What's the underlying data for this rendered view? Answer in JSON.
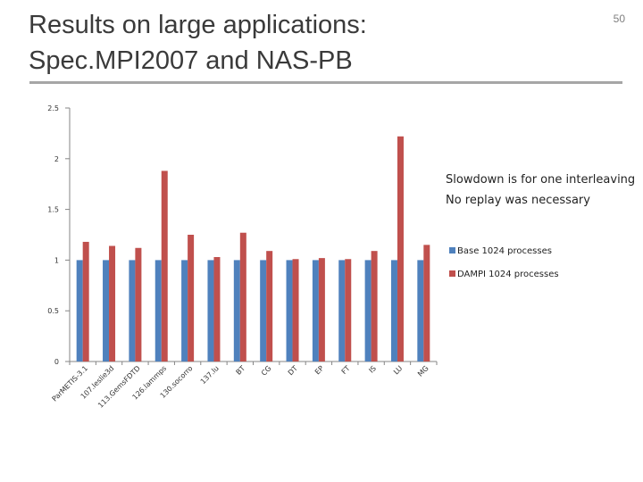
{
  "slide": {
    "title_line1": "Results on large applications:",
    "title_line2": "Spec.MPI2007 and NAS-PB",
    "page_number": "50"
  },
  "note": {
    "line1": "Slowdown is for one interleaving",
    "line2": "No replay was necessary"
  },
  "chart_data": {
    "type": "bar",
    "title": "",
    "xlabel": "",
    "ylabel": "",
    "ylim": [
      0,
      2.5
    ],
    "yticks": [
      "0",
      "0.5",
      "1",
      "1.5",
      "2",
      "2.5"
    ],
    "grid": false,
    "legend": "right",
    "categories": [
      "ParMETIS-3.1",
      "107.leslie3d",
      "113.GemsFDTD",
      "126.lammps",
      "130.socorro",
      "137.lu",
      "BT",
      "CG",
      "DT",
      "EP",
      "FT",
      "IS",
      "LU",
      "MG"
    ],
    "series": [
      {
        "name": "Base 1024 processes",
        "color": "#4f81bd",
        "values": [
          1,
          1,
          1,
          1,
          1,
          1,
          1,
          1,
          1,
          1,
          1,
          1,
          1,
          1
        ]
      },
      {
        "name": "DAMPI 1024 processes",
        "color": "#c0504d",
        "values": [
          1.18,
          1.14,
          1.12,
          1.88,
          1.25,
          1.03,
          1.27,
          1.09,
          1.01,
          1.02,
          1.01,
          1.09,
          2.22,
          1.15
        ]
      }
    ]
  }
}
